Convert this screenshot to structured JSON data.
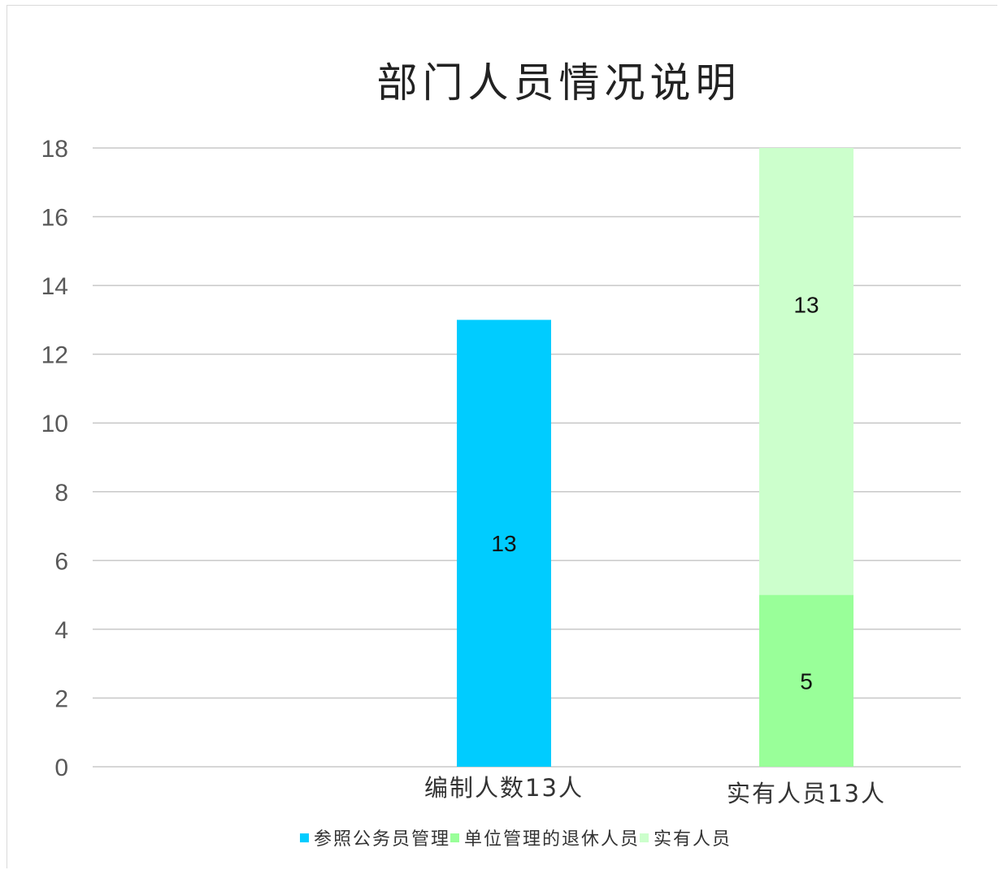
{
  "chart_data": {
    "type": "bar",
    "stacked": true,
    "title": "部门人员情况说明",
    "categories": [
      "编制人数13人",
      "实有人员13人"
    ],
    "series": [
      {
        "name": "参照公务员管理",
        "color": "#00ccff",
        "values": [
          13,
          0
        ]
      },
      {
        "name": "单位管理的退休人员",
        "color": "#99ff99",
        "values": [
          0,
          5
        ]
      },
      {
        "name": "实有人员",
        "color": "#ccffcc",
        "values": [
          0,
          13
        ]
      }
    ],
    "data_labels": [
      {
        "series": 0,
        "category": 0,
        "text": "13"
      },
      {
        "series": 1,
        "category": 1,
        "text": "5"
      },
      {
        "series": 2,
        "category": 1,
        "text": "13"
      }
    ],
    "ylim": [
      0,
      18
    ],
    "yticks": [
      "0",
      "2",
      "4",
      "6",
      "8",
      "10",
      "12",
      "14",
      "16",
      "18"
    ],
    "grid": true,
    "legend_position": "bottom"
  }
}
